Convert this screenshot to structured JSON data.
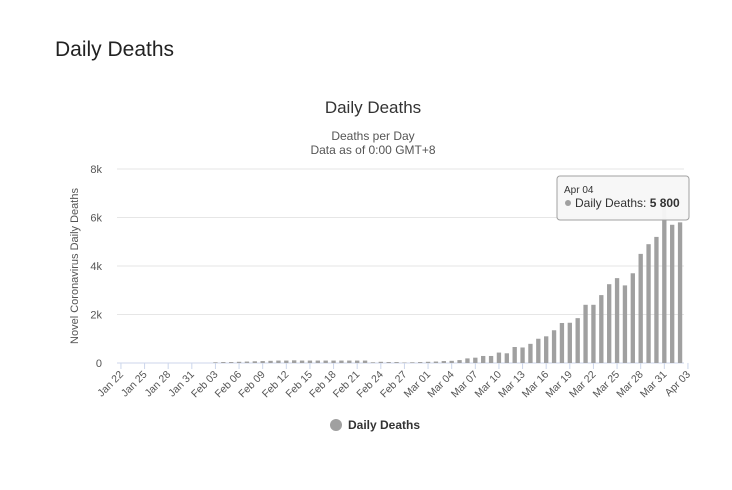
{
  "page": {
    "heading": "Daily Deaths"
  },
  "colors": {
    "bar": "#a0a0a0",
    "grid": "#e6e6e6",
    "axis": "#ccd6eb"
  },
  "tooltip": {
    "date": "Apr 04",
    "series": "Daily Deaths",
    "value_text": "5 800"
  },
  "chart_data": {
    "type": "bar",
    "title": "Daily Deaths",
    "subtitle_lines": [
      "Deaths per Day",
      "Data as of 0:00 GMT+8"
    ],
    "ylabel": "Novel Coronavirus Daily Deaths",
    "xlabel": "",
    "ylim": [
      0,
      8000
    ],
    "yticks": [
      0,
      2000,
      4000,
      6000,
      8000
    ],
    "ytick_labels": [
      "0",
      "2k",
      "4k",
      "6k",
      "8k"
    ],
    "xtick_labels": [
      "Jan 22",
      "Jan 25",
      "Jan 28",
      "Jan 31",
      "Feb 03",
      "Feb 06",
      "Feb 09",
      "Feb 12",
      "Feb 15",
      "Feb 18",
      "Feb 21",
      "Feb 24",
      "Feb 27",
      "Mar 01",
      "Mar 04",
      "Mar 07",
      "Mar 10",
      "Mar 13",
      "Mar 16",
      "Mar 19",
      "Mar 22",
      "Mar 25",
      "Mar 28",
      "Mar 31",
      "Apr 03"
    ],
    "legend": "bottom-center",
    "grid": true,
    "series": [
      {
        "name": "Daily Deaths",
        "values": [
          0,
          0,
          0,
          0,
          0,
          0,
          0,
          0,
          0,
          0,
          0,
          0,
          30,
          40,
          40,
          50,
          60,
          70,
          80,
          90,
          100,
          100,
          110,
          100,
          100,
          100,
          100,
          100,
          100,
          100,
          100,
          100,
          30,
          50,
          40,
          40,
          20,
          30,
          40,
          50,
          60,
          80,
          90,
          120,
          190,
          220,
          290,
          290,
          430,
          400,
          660,
          640,
          790,
          1000,
          1100,
          1350,
          1650,
          1660,
          1850,
          2400,
          2400,
          2800,
          3250,
          3500,
          3200,
          3700,
          4500,
          4900,
          5200,
          6700,
          5700,
          5800
        ]
      }
    ]
  }
}
